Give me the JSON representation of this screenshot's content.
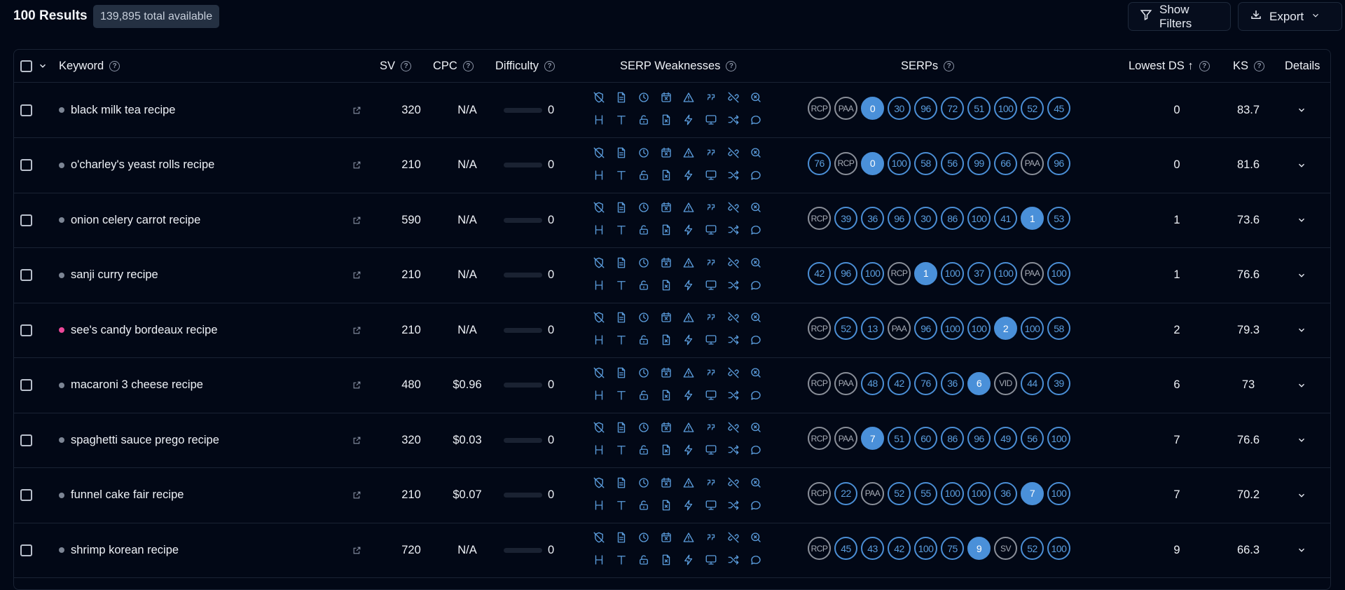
{
  "header": {
    "results_title": "100 Results",
    "total_badge": "139,895 total available",
    "filters_label": "Show Filters",
    "export_label": "Export"
  },
  "columns": {
    "keyword": "Keyword",
    "sv": "SV",
    "cpc": "CPC",
    "difficulty": "Difficulty",
    "serp_weaknesses": "SERP Weaknesses",
    "serps": "SERPs",
    "lowest_ds": "Lowest DS ↑",
    "ks": "KS",
    "details": "Details"
  },
  "weakness_icons_row1": [
    "no-shield-icon",
    "page-icon",
    "clock-icon",
    "calendar-x-icon",
    "warning-icon",
    "quote-icon",
    "no-link-icon",
    "zoom-x-icon"
  ],
  "weakness_icons_row2": [
    "heading-icon",
    "text-icon",
    "unlock-icon",
    "file-x-icon",
    "bolt-icon",
    "monitor-icon",
    "shuffle-icon",
    "comment-icon"
  ],
  "colors": {
    "accent": "#4a90d9",
    "background": "#020816",
    "dot_default": "#7c8594",
    "dot_pink": "#ec4899"
  },
  "rows": [
    {
      "keyword": "black milk tea recipe",
      "sv": "320",
      "cpc": "N/A",
      "difficulty": "0",
      "lowest_ds": "0",
      "ks": "83.7",
      "dot": "gray",
      "serps": [
        "RCP",
        "PAA",
        "0",
        "30",
        "96",
        "72",
        "51",
        "100",
        "52",
        "45"
      ],
      "hit": 2
    },
    {
      "keyword": "o'charley's yeast rolls recipe",
      "sv": "210",
      "cpc": "N/A",
      "difficulty": "0",
      "lowest_ds": "0",
      "ks": "81.6",
      "dot": "gray",
      "serps": [
        "76",
        "RCP",
        "0",
        "100",
        "58",
        "56",
        "99",
        "66",
        "PAA",
        "96"
      ],
      "hit": 2
    },
    {
      "keyword": "onion celery carrot recipe",
      "sv": "590",
      "cpc": "N/A",
      "difficulty": "0",
      "lowest_ds": "1",
      "ks": "73.6",
      "dot": "gray",
      "serps": [
        "RCP",
        "39",
        "36",
        "96",
        "30",
        "86",
        "100",
        "41",
        "1",
        "53"
      ],
      "hit": 8
    },
    {
      "keyword": "sanji curry recipe",
      "sv": "210",
      "cpc": "N/A",
      "difficulty": "0",
      "lowest_ds": "1",
      "ks": "76.6",
      "dot": "gray",
      "serps": [
        "42",
        "96",
        "100",
        "RCP",
        "1",
        "100",
        "37",
        "100",
        "PAA",
        "100"
      ],
      "hit": 4
    },
    {
      "keyword": "see's candy bordeaux recipe",
      "sv": "210",
      "cpc": "N/A",
      "difficulty": "0",
      "lowest_ds": "2",
      "ks": "79.3",
      "dot": "pink",
      "serps": [
        "RCP",
        "52",
        "13",
        "PAA",
        "96",
        "100",
        "100",
        "2",
        "100",
        "58"
      ],
      "hit": 7
    },
    {
      "keyword": "macaroni 3 cheese recipe",
      "sv": "480",
      "cpc": "$0.96",
      "difficulty": "0",
      "lowest_ds": "6",
      "ks": "73",
      "dot": "gray",
      "serps": [
        "RCP",
        "PAA",
        "48",
        "42",
        "76",
        "36",
        "6",
        "VID",
        "44",
        "39"
      ],
      "hit": 6
    },
    {
      "keyword": "spaghetti sauce prego recipe",
      "sv": "320",
      "cpc": "$0.03",
      "difficulty": "0",
      "lowest_ds": "7",
      "ks": "76.6",
      "dot": "gray",
      "serps": [
        "RCP",
        "PAA",
        "7",
        "51",
        "60",
        "86",
        "96",
        "49",
        "56",
        "100"
      ],
      "hit": 2
    },
    {
      "keyword": "funnel cake fair recipe",
      "sv": "210",
      "cpc": "$0.07",
      "difficulty": "0",
      "lowest_ds": "7",
      "ks": "70.2",
      "dot": "gray",
      "serps": [
        "RCP",
        "22",
        "PAA",
        "52",
        "55",
        "100",
        "100",
        "36",
        "7",
        "100"
      ],
      "hit": 8
    },
    {
      "keyword": "shrimp korean recipe",
      "sv": "720",
      "cpc": "N/A",
      "difficulty": "0",
      "lowest_ds": "9",
      "ks": "66.3",
      "dot": "gray",
      "serps": [
        "RCP",
        "45",
        "43",
        "42",
        "100",
        "75",
        "9",
        "SV",
        "52",
        "100"
      ],
      "hit": 6
    }
  ]
}
